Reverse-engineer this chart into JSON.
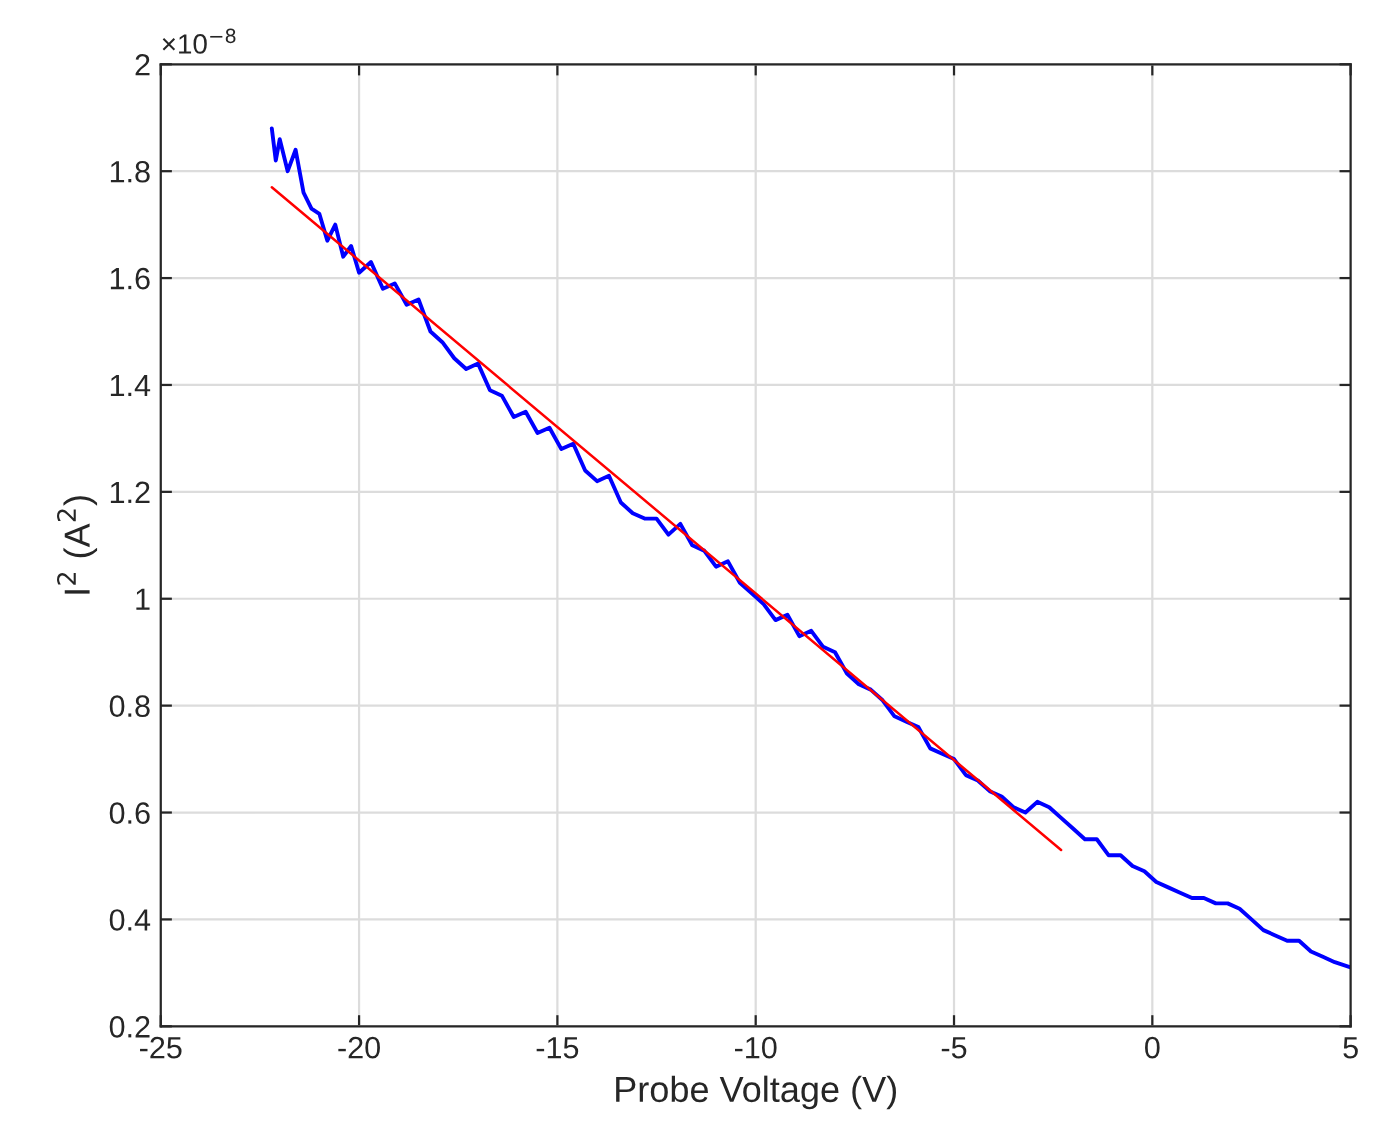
{
  "chart_data": {
    "type": "line",
    "xlabel": "Probe Voltage (V)",
    "ylabel": "I$^{2}$ (A$^{2}$)",
    "annotations": [
      "×10$^{−8}$"
    ],
    "xlim": [
      -25,
      5
    ],
    "xticks": [
      -25,
      -20,
      -15,
      -10,
      -5,
      0,
      5
    ],
    "ylim": [
      0.2,
      2
    ],
    "yticks": [
      0.2,
      0.4,
      0.6,
      0.8,
      1,
      1.2,
      1.4,
      1.6,
      1.8,
      2
    ],
    "grid": true,
    "line_style": "solid",
    "marker": "none",
    "series": [
      {
        "color": "#0000ff",
        "x": [
          -22.2,
          -22.1,
          -22.0,
          -21.8,
          -21.6,
          -21.4,
          -21.2,
          -21.0,
          -20.8,
          -20.6,
          -20.4,
          -20.2,
          -20.0,
          -19.7,
          -19.4,
          -19.1,
          -18.8,
          -18.5,
          -18.2,
          -17.9,
          -17.6,
          -17.3,
          -17.0,
          -16.7,
          -16.4,
          -16.1,
          -15.8,
          -15.5,
          -15.2,
          -14.9,
          -14.6,
          -14.3,
          -14.0,
          -13.7,
          -13.4,
          -13.1,
          -12.8,
          -12.5,
          -12.2,
          -11.9,
          -11.6,
          -11.3,
          -11.0,
          -10.7,
          -10.4,
          -10.1,
          -9.8,
          -9.5,
          -9.2,
          -8.9,
          -8.6,
          -8.3,
          -8.0,
          -7.7,
          -7.4,
          -7.1,
          -6.8,
          -6.5,
          -6.2,
          -5.9,
          -5.6,
          -5.3,
          -5.0,
          -4.7,
          -4.4,
          -4.1,
          -3.8,
          -3.5,
          -3.2,
          -2.9,
          -2.6,
          -2.3,
          -2.0,
          -1.7,
          -1.4,
          -1.1,
          -0.8,
          -0.5,
          -0.2,
          0.1,
          0.4,
          0.7,
          1.0,
          1.3,
          1.6,
          1.9,
          2.2,
          2.5,
          2.8,
          3.1,
          3.4,
          3.7,
          4.0,
          4.3,
          4.6,
          5.0
        ],
        "values": [
          1.88,
          1.82,
          1.86,
          1.8,
          1.84,
          1.76,
          1.73,
          1.72,
          1.67,
          1.7,
          1.64,
          1.66,
          1.61,
          1.63,
          1.58,
          1.59,
          1.55,
          1.56,
          1.5,
          1.48,
          1.45,
          1.43,
          1.44,
          1.39,
          1.38,
          1.34,
          1.35,
          1.31,
          1.32,
          1.28,
          1.29,
          1.24,
          1.22,
          1.23,
          1.18,
          1.16,
          1.15,
          1.15,
          1.12,
          1.14,
          1.1,
          1.09,
          1.06,
          1.07,
          1.03,
          1.01,
          0.99,
          0.96,
          0.97,
          0.93,
          0.94,
          0.91,
          0.9,
          0.86,
          0.84,
          0.83,
          0.81,
          0.78,
          0.77,
          0.76,
          0.72,
          0.71,
          0.7,
          0.67,
          0.66,
          0.64,
          0.63,
          0.61,
          0.6,
          0.62,
          0.61,
          0.59,
          0.57,
          0.55,
          0.55,
          0.52,
          0.52,
          0.5,
          0.49,
          0.47,
          0.46,
          0.45,
          0.44,
          0.44,
          0.43,
          0.43,
          0.42,
          0.4,
          0.38,
          0.37,
          0.36,
          0.36,
          0.34,
          0.33,
          0.32,
          0.31
        ]
      },
      {
        "color": "#ff0000",
        "x": [
          -22.2,
          -2.3
        ],
        "values": [
          1.77,
          0.53
        ]
      }
    ]
  }
}
